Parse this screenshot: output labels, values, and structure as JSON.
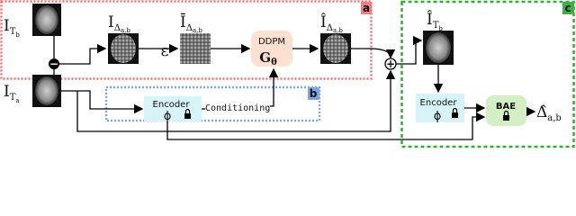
{
  "boxes": [
    {
      "tag": "a"
    },
    {
      "tag": "b"
    },
    {
      "tag": "c"
    }
  ],
  "images": [
    {
      "base": "I",
      "sub": "T",
      "subsub": "b"
    },
    {
      "base": "I",
      "sub": "T",
      "subsub": "a"
    },
    {
      "base": "I",
      "sub": "Δ",
      "subsub": "a,b"
    },
    {
      "base": "Ī",
      "sub": "Δ",
      "subsub": "a,b"
    },
    {
      "base": "Î",
      "sub": "Δ",
      "subsub": "a,b"
    },
    {
      "base": "Î",
      "sub": "T",
      "subsub": "b"
    }
  ],
  "noise": "ε",
  "ddpm": {
    "title": "DDPM",
    "symbol": "G",
    "sub": "θ"
  },
  "encoders": [
    {
      "title": "Encoder",
      "symbol": "ϕ"
    },
    {
      "title": "Encoder",
      "symbol": "ϕ"
    }
  ],
  "conditioning": "Conditioning",
  "bae": "BAE",
  "output": {
    "base": "Δ̂",
    "sub": "a,b"
  },
  "ops": [
    "−",
    "+"
  ]
}
